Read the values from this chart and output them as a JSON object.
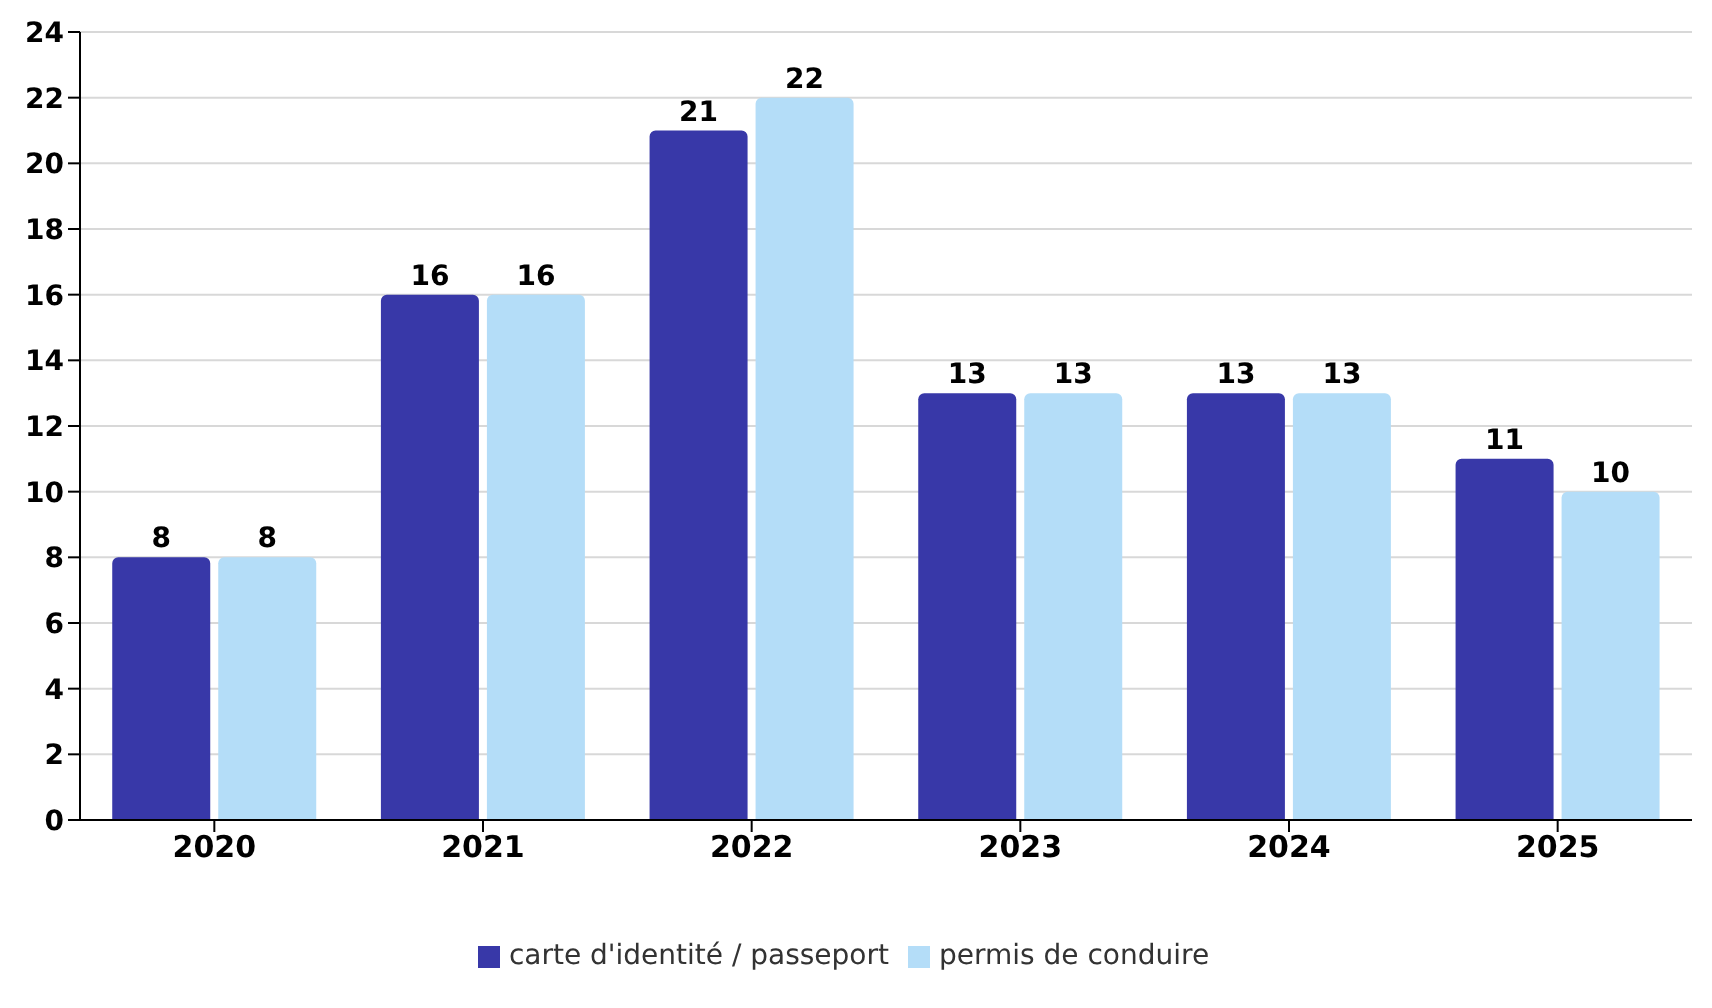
{
  "chart_data": {
    "type": "bar",
    "categories": [
      "2020",
      "2021",
      "2022",
      "2023",
      "2024",
      "2025"
    ],
    "series": [
      {
        "name": "carte d'identité / passeport",
        "color": "#3838a8",
        "values": [
          8,
          16,
          21,
          13,
          13,
          11
        ]
      },
      {
        "name": "permis de conduire",
        "color": "#b4ddf8",
        "values": [
          8,
          16,
          22,
          13,
          13,
          10
        ]
      }
    ],
    "ylim": [
      0,
      24
    ],
    "yticks": [
      0,
      2,
      4,
      6,
      8,
      10,
      12,
      14,
      16,
      18,
      20,
      22,
      24
    ],
    "grid": "y",
    "legend": "bottom",
    "data_labels": true
  }
}
